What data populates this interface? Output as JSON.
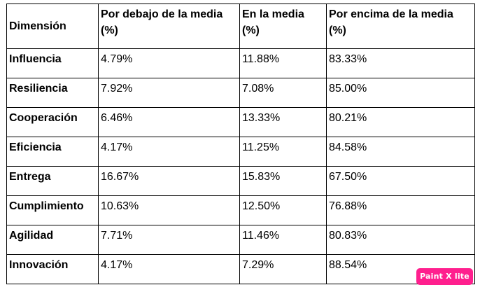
{
  "table": {
    "headers": [
      "Dimensión",
      "Por debajo de la media (%)",
      "En la media (%)",
      "Por encima de la media (%)"
    ],
    "rows": [
      [
        "Influencia",
        "4.79%",
        "11.88%",
        "83.33%"
      ],
      [
        "Resiliencia",
        "7.92%",
        "7.08%",
        "85.00%"
      ],
      [
        "Cooperación",
        "6.46%",
        "13.33%",
        "80.21%"
      ],
      [
        "Eficiencia",
        "4.17%",
        "11.25%",
        "84.58%"
      ],
      [
        "Entrega",
        "16.67%",
        "15.83%",
        "67.50%"
      ],
      [
        "Cumplimiento",
        "10.63%",
        "12.50%",
        "76.88%"
      ],
      [
        "Agilidad",
        "7.71%",
        "11.46%",
        "80.83%"
      ],
      [
        "Innovación",
        "4.17%",
        "7.29%",
        "88.54%"
      ]
    ]
  },
  "watermark": {
    "text": "Paint X lite",
    "color": "#ff1f8e"
  }
}
